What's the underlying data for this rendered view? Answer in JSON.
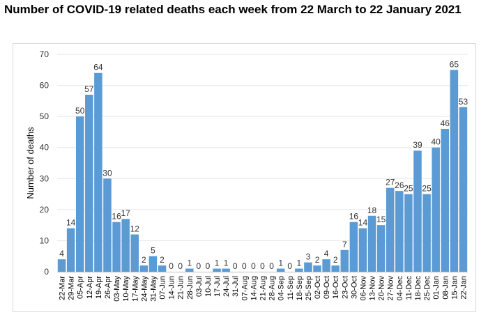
{
  "chart_data": {
    "type": "bar",
    "title": "Number of COVID-19 related deaths each week from 22 March to 22 January 2021",
    "xlabel": "",
    "ylabel": "Number of deaths",
    "ylim": [
      0,
      70
    ],
    "yticks": [
      0,
      10,
      20,
      30,
      40,
      50,
      60,
      70
    ],
    "grid": true,
    "legend": "none",
    "bar_color": "#5B9BD5",
    "categories": [
      "22-Mar",
      "29-Mar",
      "05-Apr",
      "12-Apr",
      "19-Apr",
      "26-Apr",
      "03-May",
      "10-May",
      "17-May",
      "24-May",
      "31-May",
      "07-Jun",
      "14-Jun",
      "21-Jun",
      "28-Jun",
      "03-Jul",
      "10-Jul",
      "17-Jul",
      "24-Jul",
      "31-Jul",
      "07-Aug",
      "14-Aug",
      "21-Aug",
      "28-Aug",
      "04-Sep",
      "11-Sep",
      "18-Sep",
      "25-Sep",
      "02-Oct",
      "09-Oct",
      "16-Oct",
      "23-Oct",
      "30-Oct",
      "06-Nov",
      "13-Nov",
      "20-Nov",
      "27-Nov",
      "04-Dec",
      "11-Dec",
      "18-Dec",
      "25-Dec",
      "01-Jan",
      "08-Jan",
      "15-Jan",
      "22-Jan"
    ],
    "values": [
      4,
      14,
      50,
      57,
      64,
      30,
      16,
      17,
      12,
      2,
      5,
      2,
      0,
      0,
      1,
      0,
      0,
      1,
      1,
      0,
      0,
      0,
      0,
      0,
      1,
      0,
      1,
      3,
      2,
      4,
      2,
      7,
      16,
      14,
      18,
      15,
      27,
      26,
      25,
      39,
      25,
      40,
      46,
      65,
      53
    ]
  }
}
